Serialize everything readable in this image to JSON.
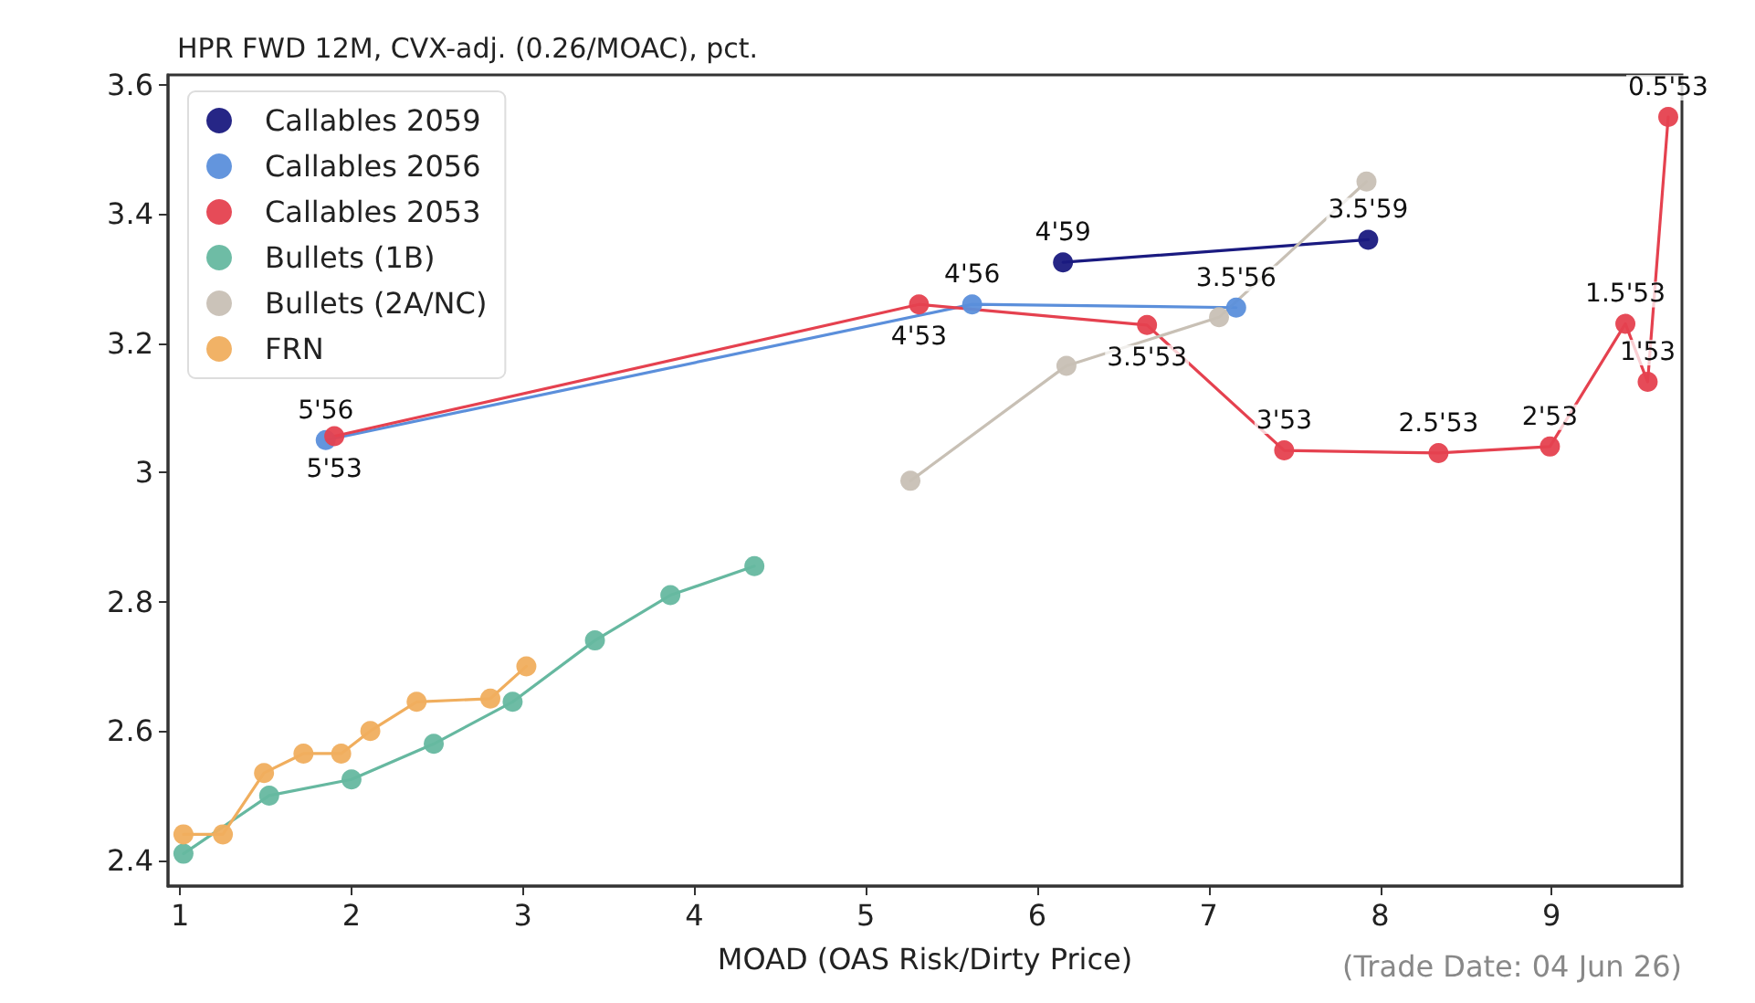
{
  "chart_data": {
    "type": "line",
    "title": "HPR FWD 12M, CVX-adj. (0.26/MOAC), pct.",
    "xlabel": "MOAD (OAS Risk/Dirty Price)",
    "annotations": [
      "(Trade Date: 04 Jun 26)",
      {
        "text": "4'59",
        "x": 6.15,
        "y": 3.325
      },
      {
        "text": "3.5'59",
        "x": 7.93,
        "y": 3.36
      },
      {
        "text": "5'56",
        "x": 1.85,
        "y": 3.05
      },
      {
        "text": "4'56",
        "x": 5.62,
        "y": 3.26
      },
      {
        "text": "3.5'56",
        "x": 7.16,
        "y": 3.255
      },
      {
        "text": "5'53",
        "x": 1.9,
        "y": 3.056
      },
      {
        "text": "4'53",
        "x": 5.31,
        "y": 3.26
      },
      {
        "text": "3.5'53",
        "x": 6.64,
        "y": 3.228
      },
      {
        "text": "3'53",
        "x": 7.44,
        "y": 3.034
      },
      {
        "text": "2.5'53",
        "x": 8.34,
        "y": 3.03
      },
      {
        "text": "2'53",
        "x": 8.99,
        "y": 3.04
      },
      {
        "text": "1.5'53",
        "x": 9.43,
        "y": 3.23
      },
      {
        "text": "1'53",
        "x": 9.56,
        "y": 3.14
      },
      {
        "text": "0.5'53",
        "x": 9.68,
        "y": 3.55
      }
    ],
    "xlim": [
      0.93,
      9.76
    ],
    "xticks": [
      1,
      2,
      3,
      4,
      5,
      6,
      7,
      8,
      9
    ],
    "ylim": [
      2.36,
      3.615
    ],
    "yticks": [
      2.4,
      2.6,
      2.8,
      3.0,
      3.2,
      3.4,
      3.6
    ],
    "grid": false,
    "legend": "top left",
    "marker": "circle",
    "line_style": "solid",
    "series": [
      {
        "name": "Callables 2059",
        "color": "#1a1a80",
        "x": [
          6.15,
          7.93
        ],
        "values": [
          3.325,
          3.36
        ]
      },
      {
        "name": "Callables 2056",
        "color": "#5b8fdb",
        "x": [
          1.85,
          5.62,
          7.16
        ],
        "values": [
          3.05,
          3.26,
          3.255
        ]
      },
      {
        "name": "Callables 2053",
        "color": "#e5414f",
        "x": [
          1.9,
          5.31,
          6.64,
          7.44,
          8.34,
          8.99,
          9.43,
          9.56,
          9.68
        ],
        "values": [
          3.056,
          3.26,
          3.228,
          3.034,
          3.03,
          3.04,
          3.23,
          3.14,
          3.55
        ]
      },
      {
        "name": "Bullets (1B)",
        "color": "#66b8a0",
        "x": [
          1.02,
          1.52,
          2.0,
          2.48,
          2.94,
          3.42,
          3.86,
          4.35
        ],
        "values": [
          2.41,
          2.5,
          2.525,
          2.58,
          2.645,
          2.74,
          2.81,
          2.855
        ]
      },
      {
        "name": "Bullets (2A/NC)",
        "color": "#c8c0b5",
        "x": [
          5.26,
          6.17,
          7.06,
          7.92
        ],
        "values": [
          2.987,
          3.165,
          3.24,
          3.45
        ]
      },
      {
        "name": "FRN",
        "color": "#f0ae5e",
        "x": [
          1.02,
          1.25,
          1.49,
          1.72,
          1.94,
          2.11,
          2.38,
          2.81,
          3.02
        ],
        "values": [
          2.44,
          2.44,
          2.535,
          2.565,
          2.565,
          2.6,
          2.645,
          2.65,
          2.7
        ]
      }
    ]
  }
}
